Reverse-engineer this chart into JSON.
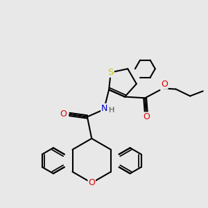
{
  "bg": "#e8e8e8",
  "atom_colors": {
    "S": "#c8c800",
    "O": "#dd0000",
    "N": "#0000cc",
    "C": "#000000"
  },
  "lw": 1.5,
  "fs": 9.0,
  "dbl_off": 0.07
}
